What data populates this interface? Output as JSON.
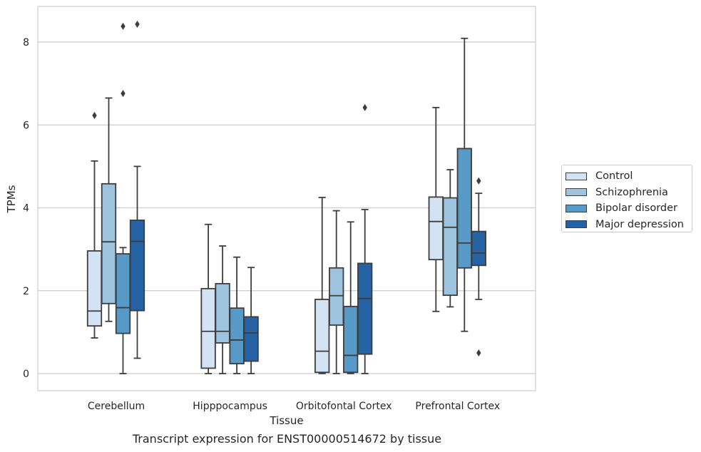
{
  "chart_data": {
    "type": "box",
    "title": "Transcript expression for ENST00000514672 by tissue",
    "xlabel": "Tissue",
    "ylabel": "TPMs",
    "ylim": [
      -0.4,
      8.9
    ],
    "yticks": [
      0,
      2,
      4,
      6,
      8
    ],
    "grid": true,
    "legend_position": "right",
    "categories": [
      "Cerebellum",
      "Hipppocampus",
      "Orbitofontal Cortex",
      "Prefrontal Cortex"
    ],
    "series": [
      {
        "name": "Control",
        "color": "#d4e3f3",
        "boxes": [
          {
            "whislo": 0.86,
            "q1": 1.15,
            "med": 1.51,
            "q3": 2.96,
            "whishi": 5.13,
            "fliers": [
              6.23
            ]
          },
          {
            "whislo": 0.0,
            "q1": 0.13,
            "med": 1.02,
            "q3": 2.05,
            "whishi": 3.6,
            "fliers": []
          },
          {
            "whislo": 0.0,
            "q1": 0.03,
            "med": 0.54,
            "q3": 1.79,
            "whishi": 4.25,
            "fliers": []
          },
          {
            "whislo": 1.5,
            "q1": 2.75,
            "med": 3.67,
            "q3": 4.26,
            "whishi": 6.42,
            "fliers": []
          }
        ]
      },
      {
        "name": "Schizophrenia",
        "color": "#9dc4de",
        "boxes": [
          {
            "whislo": 1.26,
            "q1": 1.69,
            "med": 3.18,
            "q3": 4.58,
            "whishi": 6.65,
            "fliers": []
          },
          {
            "whislo": 0.0,
            "q1": 0.74,
            "med": 1.02,
            "q3": 2.17,
            "whishi": 3.08,
            "fliers": []
          },
          {
            "whislo": 0.0,
            "q1": 1.17,
            "med": 1.88,
            "q3": 2.55,
            "whishi": 3.93,
            "fliers": []
          },
          {
            "whislo": 1.61,
            "q1": 1.89,
            "med": 3.53,
            "q3": 4.24,
            "whishi": 4.92,
            "fliers": []
          }
        ]
      },
      {
        "name": "Bipolar disorder",
        "color": "#5799c7",
        "boxes": [
          {
            "whislo": 0.0,
            "q1": 0.97,
            "med": 1.59,
            "q3": 2.89,
            "whishi": 3.04,
            "fliers": [
              6.76,
              8.38
            ]
          },
          {
            "whislo": 0.0,
            "q1": 0.24,
            "med": 0.81,
            "q3": 1.58,
            "whishi": 2.81,
            "fliers": []
          },
          {
            "whislo": 0.0,
            "q1": 0.03,
            "med": 0.44,
            "q3": 1.62,
            "whishi": 3.66,
            "fliers": []
          },
          {
            "whislo": 1.02,
            "q1": 2.55,
            "med": 3.15,
            "q3": 5.43,
            "whishi": 8.09,
            "fliers": []
          }
        ]
      },
      {
        "name": "Major depression",
        "color": "#2563a4",
        "boxes": [
          {
            "whislo": 0.37,
            "q1": 1.52,
            "med": 3.19,
            "q3": 3.7,
            "whishi": 5.0,
            "fliers": [
              8.43
            ]
          },
          {
            "whislo": 0.0,
            "q1": 0.3,
            "med": 0.98,
            "q3": 1.37,
            "whishi": 2.56,
            "fliers": []
          },
          {
            "whislo": 0.0,
            "q1": 0.47,
            "med": 1.81,
            "q3": 2.66,
            "whishi": 3.96,
            "fliers": [
              6.42
            ]
          },
          {
            "whislo": 1.79,
            "q1": 2.61,
            "med": 2.91,
            "q3": 3.43,
            "whishi": 4.35,
            "fliers": [
              4.65,
              0.5
            ]
          }
        ]
      }
    ]
  }
}
